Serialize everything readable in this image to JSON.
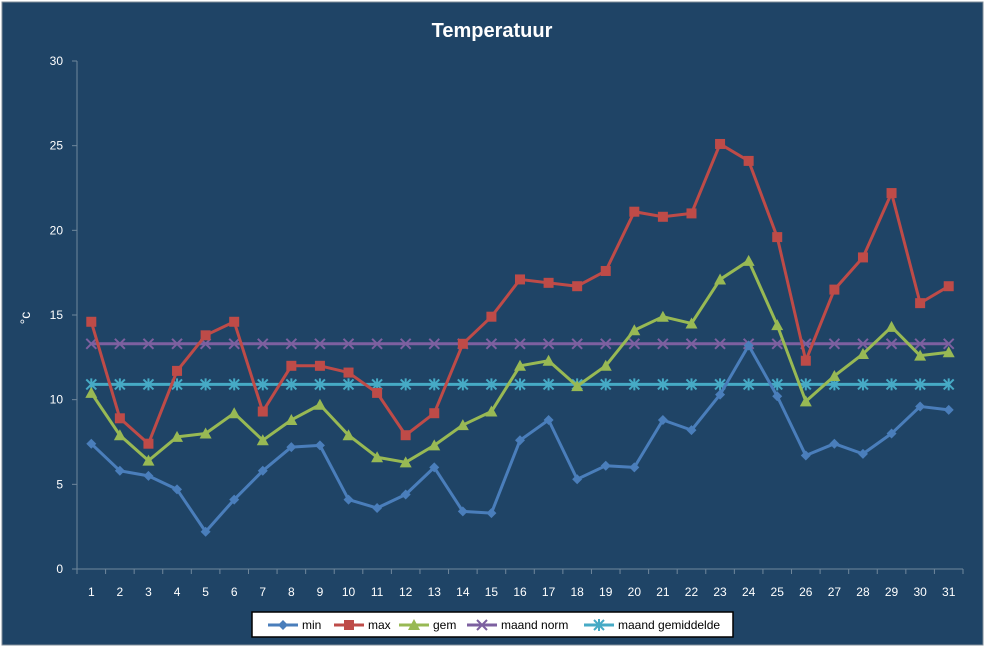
{
  "chart_data": {
    "type": "line",
    "title": "Temperatuur",
    "xlabel": "",
    "ylabel": "°c",
    "categories": [
      "1",
      "2",
      "3",
      "4",
      "5",
      "6",
      "7",
      "8",
      "9",
      "10",
      "11",
      "12",
      "13",
      "14",
      "15",
      "16",
      "17",
      "18",
      "19",
      "20",
      "21",
      "22",
      "23",
      "24",
      "25",
      "26",
      "27",
      "28",
      "29",
      "30",
      "31"
    ],
    "ylim": [
      0,
      30
    ],
    "yticks": [
      0,
      5,
      10,
      15,
      20,
      25,
      30
    ],
    "grid": false,
    "legend_position": "bottom",
    "colors": {
      "background": "#1f4466",
      "plot_border": "#6f879c",
      "text": "#ffffff",
      "legend_bg": "#ffffff",
      "legend_text": "#000000"
    },
    "series": [
      {
        "name": "min",
        "color": "#4a7ebb",
        "marker": "diamond",
        "values": [
          7.4,
          5.8,
          5.5,
          4.7,
          2.2,
          4.1,
          5.8,
          7.2,
          7.3,
          4.1,
          3.6,
          4.4,
          6.0,
          3.4,
          3.3,
          7.6,
          8.8,
          5.3,
          6.1,
          6.0,
          8.8,
          8.2,
          10.3,
          13.2,
          10.2,
          6.7,
          7.4,
          6.8,
          8.0,
          9.6,
          9.4
        ]
      },
      {
        "name": "max",
        "color": "#be4b48",
        "marker": "square",
        "values": [
          14.6,
          8.9,
          7.4,
          11.7,
          13.8,
          14.6,
          9.3,
          12.0,
          12.0,
          11.6,
          10.4,
          7.9,
          9.2,
          13.3,
          14.9,
          17.1,
          16.9,
          16.7,
          17.6,
          21.1,
          20.8,
          21.0,
          25.1,
          24.1,
          19.6,
          12.3,
          16.5,
          18.4,
          22.2,
          15.7,
          16.7
        ]
      },
      {
        "name": "gem",
        "color": "#98b954",
        "marker": "triangle",
        "values": [
          10.4,
          7.9,
          6.4,
          7.8,
          8.0,
          9.2,
          7.6,
          8.8,
          9.7,
          7.9,
          6.6,
          6.3,
          7.3,
          8.5,
          9.3,
          12.0,
          12.3,
          10.8,
          12.0,
          14.1,
          14.9,
          14.5,
          17.1,
          18.2,
          14.4,
          9.9,
          11.4,
          12.7,
          14.3,
          12.6,
          12.8
        ]
      },
      {
        "name": "maand norm",
        "color": "#7d60a0",
        "marker": "x",
        "values": [
          13.3,
          13.3,
          13.3,
          13.3,
          13.3,
          13.3,
          13.3,
          13.3,
          13.3,
          13.3,
          13.3,
          13.3,
          13.3,
          13.3,
          13.3,
          13.3,
          13.3,
          13.3,
          13.3,
          13.3,
          13.3,
          13.3,
          13.3,
          13.3,
          13.3,
          13.3,
          13.3,
          13.3,
          13.3,
          13.3,
          13.3
        ]
      },
      {
        "name": "maand gemiddelde",
        "color": "#46aac5",
        "marker": "star",
        "values": [
          10.9,
          10.9,
          10.9,
          10.9,
          10.9,
          10.9,
          10.9,
          10.9,
          10.9,
          10.9,
          10.9,
          10.9,
          10.9,
          10.9,
          10.9,
          10.9,
          10.9,
          10.9,
          10.9,
          10.9,
          10.9,
          10.9,
          10.9,
          10.9,
          10.9,
          10.9,
          10.9,
          10.9,
          10.9,
          10.9,
          10.9
        ]
      }
    ]
  }
}
